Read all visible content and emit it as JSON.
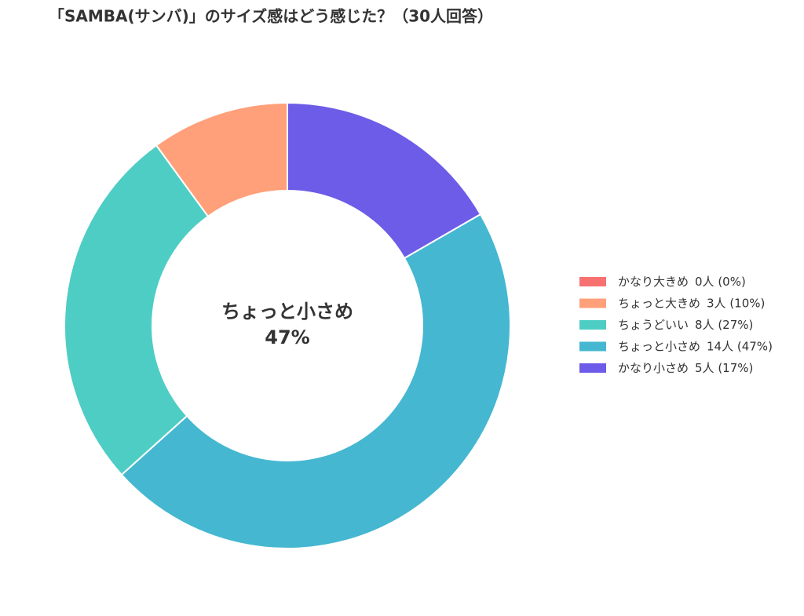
{
  "chart_data": {
    "type": "donut",
    "title": "「SAMBA(サンバ)」のサイズ感はどう感じた？（30人回答）",
    "categories": [
      "かなり大きめ",
      "ちょっと大きめ",
      "ちょうどいい",
      "ちょっと小さめ",
      "かなり小さめ"
    ],
    "values": [
      0,
      3,
      8,
      14,
      5
    ],
    "value_labels": [
      "0人 (0%)",
      "3人 (10%)",
      "8人 (27%)",
      "14人 (47%)",
      "5人 (17%)"
    ],
    "colors": [
      "#f87171",
      "#ffa07a",
      "#4ecdc4",
      "#45b7d1",
      "#6c5ce7"
    ],
    "center_label": "ちょっと小さめ",
    "center_value_label": "47%",
    "legend": "right"
  }
}
